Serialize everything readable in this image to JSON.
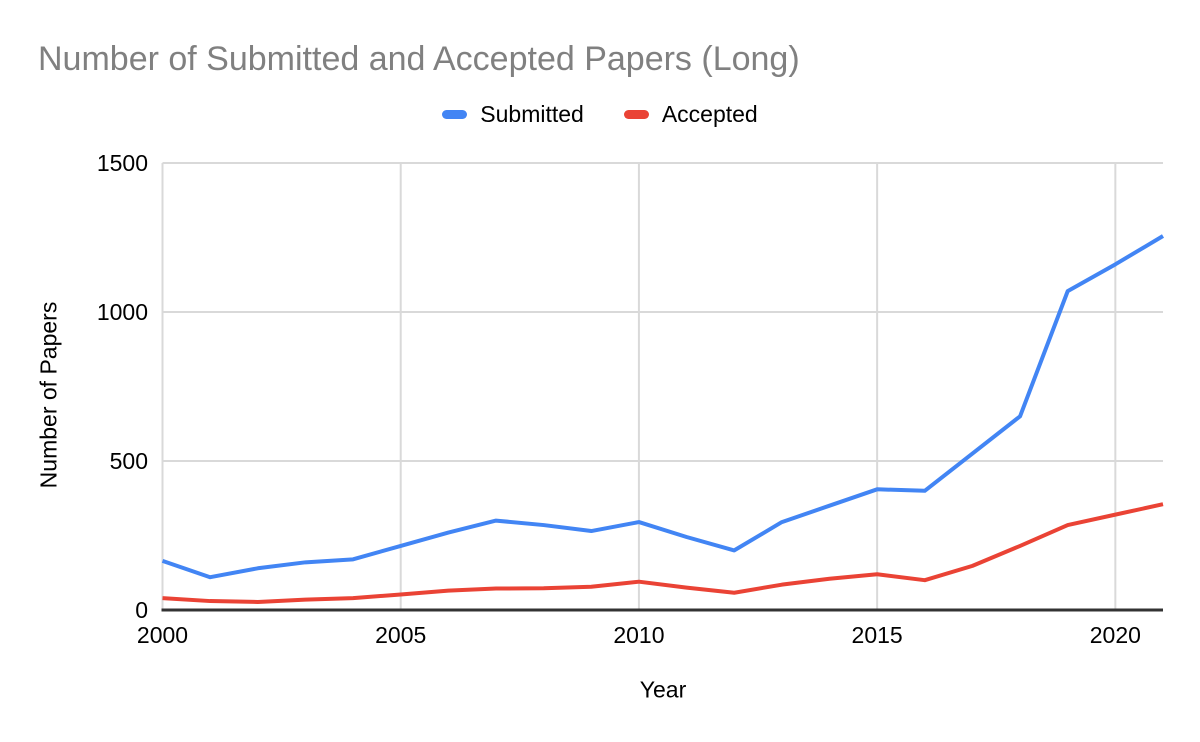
{
  "style": {
    "background": "#ffffff",
    "title_color": "#808080",
    "grid_color": "#d9d9d9",
    "axis_line_color": "#333333",
    "tick_label_color": "#000000"
  },
  "chart_data": {
    "type": "line",
    "title": "Number of Submitted and Accepted Papers (Long)",
    "xlabel": "Year",
    "ylabel": "Number of Papers",
    "x": [
      2000,
      2001,
      2002,
      2003,
      2004,
      2005,
      2006,
      2007,
      2008,
      2009,
      2010,
      2011,
      2012,
      2013,
      2014,
      2015,
      2016,
      2017,
      2018,
      2019,
      2020,
      2021
    ],
    "series": [
      {
        "name": "Submitted",
        "color": "#4285F4",
        "values": [
          165,
          110,
          140,
          160,
          170,
          215,
          260,
          300,
          285,
          265,
          295,
          245,
          200,
          295,
          350,
          405,
          400,
          525,
          650,
          1070,
          1160,
          1255
        ]
      },
      {
        "name": "Accepted",
        "color": "#EA4335",
        "values": [
          40,
          30,
          27,
          35,
          40,
          52,
          65,
          72,
          73,
          78,
          95,
          75,
          58,
          85,
          105,
          120,
          100,
          148,
          215,
          285,
          320,
          355
        ]
      }
    ],
    "xlim": [
      2000,
      2021
    ],
    "ylim": [
      0,
      1500
    ],
    "x_ticks": [
      2000,
      2005,
      2010,
      2015,
      2020
    ],
    "y_ticks": [
      0,
      500,
      1000,
      1500
    ],
    "grid": true,
    "legend_position": "top"
  }
}
